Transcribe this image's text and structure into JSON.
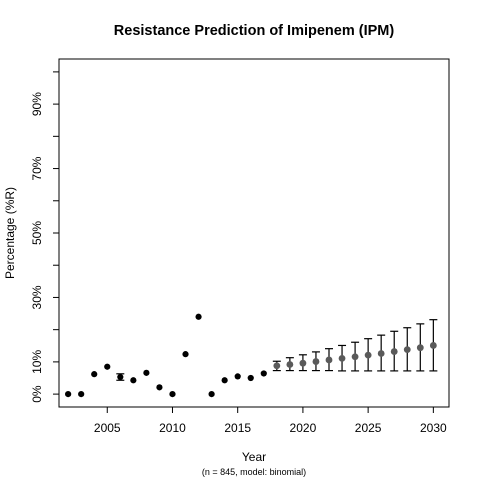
{
  "chart_data": {
    "type": "scatter",
    "title": "Resistance Prediction of Imipenem (IPM)",
    "xlabel": "Year",
    "ylabel": "Percentage (%R)",
    "subtitle": "(n = 845, model: binomial)",
    "xlim": [
      2001.3,
      2031.2
    ],
    "ylim": [
      -0.04,
      1.04
    ],
    "x_ticks": [
      2005,
      2010,
      2015,
      2020,
      2025,
      2030
    ],
    "y_ticks": [
      {
        "value": 0.0,
        "label": "0%"
      },
      {
        "value": 0.1,
        "label": "10%"
      },
      {
        "value": 0.3,
        "label": "30%"
      },
      {
        "value": 0.5,
        "label": "50%"
      },
      {
        "value": 0.7,
        "label": "70%"
      },
      {
        "value": 0.9,
        "label": "90%"
      }
    ],
    "y_minor_ticks": [
      0.2,
      0.4,
      0.6,
      0.8,
      1.0
    ],
    "observed": [
      {
        "x": 2002,
        "y": 0.0
      },
      {
        "x": 2003,
        "y": 0.0
      },
      {
        "x": 2004,
        "y": 0.062
      },
      {
        "x": 2005,
        "y": 0.085
      },
      {
        "x": 2006,
        "y": 0.053,
        "lower": 0.043,
        "upper": 0.063
      },
      {
        "x": 2007,
        "y": 0.043
      },
      {
        "x": 2008,
        "y": 0.066
      },
      {
        "x": 2009,
        "y": 0.021
      },
      {
        "x": 2010,
        "y": 0.0
      },
      {
        "x": 2011,
        "y": 0.124
      },
      {
        "x": 2012,
        "y": 0.24
      },
      {
        "x": 2013,
        "y": 0.0
      },
      {
        "x": 2014,
        "y": 0.043
      },
      {
        "x": 2015,
        "y": 0.055
      },
      {
        "x": 2016,
        "y": 0.05
      },
      {
        "x": 2017,
        "y": 0.064
      }
    ],
    "predicted": [
      {
        "x": 2018,
        "y": 0.088,
        "lower": 0.073,
        "upper": 0.102
      },
      {
        "x": 2019,
        "y": 0.092,
        "lower": 0.073,
        "upper": 0.113
      },
      {
        "x": 2020,
        "y": 0.096,
        "lower": 0.073,
        "upper": 0.122
      },
      {
        "x": 2021,
        "y": 0.101,
        "lower": 0.073,
        "upper": 0.131
      },
      {
        "x": 2022,
        "y": 0.106,
        "lower": 0.073,
        "upper": 0.141
      },
      {
        "x": 2023,
        "y": 0.111,
        "lower": 0.072,
        "upper": 0.151
      },
      {
        "x": 2024,
        "y": 0.116,
        "lower": 0.072,
        "upper": 0.161
      },
      {
        "x": 2025,
        "y": 0.121,
        "lower": 0.072,
        "upper": 0.172
      },
      {
        "x": 2026,
        "y": 0.126,
        "lower": 0.072,
        "upper": 0.183
      },
      {
        "x": 2027,
        "y": 0.132,
        "lower": 0.072,
        "upper": 0.195
      },
      {
        "x": 2028,
        "y": 0.138,
        "lower": 0.072,
        "upper": 0.206
      },
      {
        "x": 2029,
        "y": 0.144,
        "lower": 0.072,
        "upper": 0.218
      },
      {
        "x": 2030,
        "y": 0.151,
        "lower": 0.072,
        "upper": 0.231
      }
    ],
    "colors": {
      "observed": "#000000",
      "predicted": "#5a5a5a",
      "error_bar": "#000000"
    },
    "grid": false,
    "legend": "none"
  }
}
